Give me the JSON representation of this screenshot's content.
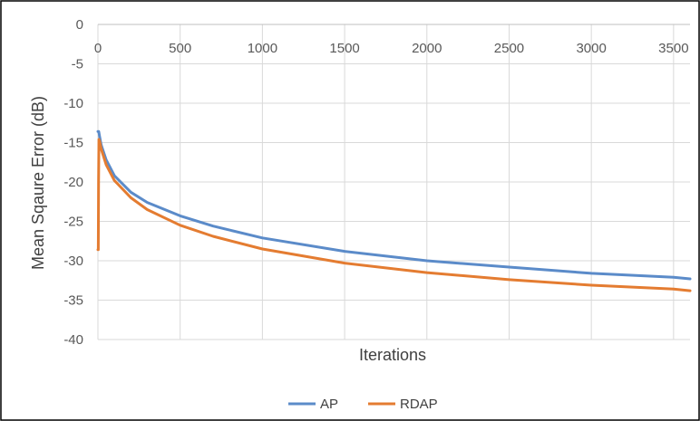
{
  "chart_data": {
    "type": "line",
    "title": "",
    "xlabel": "Iterations",
    "ylabel": "Mean Sqaure Error (dB)",
    "xlim": [
      0,
      3600
    ],
    "ylim": [
      -40,
      0
    ],
    "x_ticks": [
      "0",
      "500",
      "1000",
      "1500",
      "2000",
      "2500",
      "3000",
      "3500"
    ],
    "y_ticks": [
      "0",
      "-5",
      "-10",
      "-15",
      "-20",
      "-25",
      "-30",
      "-35",
      "-40"
    ],
    "x_axis_position": "top",
    "grid": true,
    "legend_position": "bottom",
    "series": [
      {
        "name": "AP",
        "color": "#5B8BC9",
        "x": [
          0,
          5,
          10,
          20,
          50,
          100,
          200,
          300,
          500,
          700,
          1000,
          1500,
          2000,
          2500,
          3000,
          3500,
          3600
        ],
        "y": [
          -13.6,
          -13.6,
          -14.2,
          -15.3,
          -17.2,
          -19.2,
          -21.3,
          -22.6,
          -24.3,
          -25.6,
          -27.1,
          -28.8,
          -30.0,
          -30.8,
          -31.6,
          -32.1,
          -32.3
        ]
      },
      {
        "name": "RDAP",
        "color": "#E47C31",
        "x": [
          0,
          2,
          4,
          6,
          10,
          20,
          50,
          100,
          200,
          300,
          500,
          700,
          1000,
          1500,
          2000,
          2500,
          3000,
          3500,
          3600
        ],
        "y": [
          -28.6,
          -28.6,
          -20.0,
          -14.6,
          -14.8,
          -15.8,
          -17.8,
          -19.8,
          -22.0,
          -23.5,
          -25.5,
          -26.9,
          -28.5,
          -30.3,
          -31.5,
          -32.4,
          -33.1,
          -33.6,
          -33.8
        ]
      }
    ]
  }
}
